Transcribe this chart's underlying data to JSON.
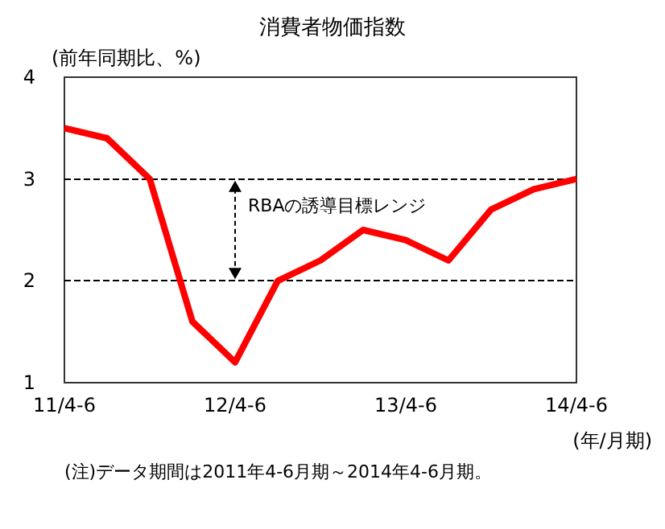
{
  "chart_data": {
    "type": "line",
    "title": "消費者物価指数",
    "ylabel": "(前年同期比、%)",
    "xlabel": "(年/月期)",
    "categories": [
      "11/4-6",
      null,
      null,
      null,
      "12/4-6",
      null,
      null,
      null,
      "13/4-6",
      null,
      null,
      null,
      "14/4-6"
    ],
    "series": [
      {
        "color": "#ff0000",
        "values": [
          3.5,
          3.4,
          3.0,
          1.6,
          1.2,
          2.0,
          2.2,
          2.5,
          2.4,
          2.2,
          2.7,
          2.9,
          3.0
        ]
      }
    ],
    "ylim": [
      1,
      4
    ],
    "yticks": [
      1,
      2,
      3,
      4
    ],
    "marker": "none",
    "line_style": "solid",
    "ref_lines": [
      {
        "axis": "y",
        "value": 3,
        "label": "RBAの誘導目標レンジ",
        "color": "#000000",
        "line_style": "dashed"
      },
      {
        "axis": "y",
        "value": 2,
        "color": "#000000",
        "line_style": "dashed"
      }
    ],
    "annotations": [
      "(注)データ期間は2011年4-6月期～2014年4-6月期。"
    ]
  }
}
